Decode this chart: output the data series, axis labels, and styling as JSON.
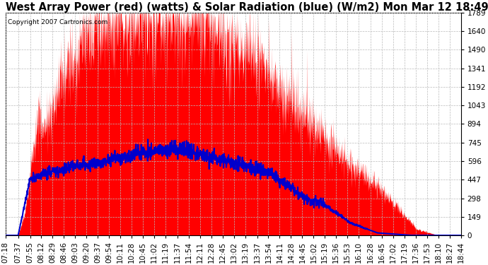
{
  "title": "West Array Power (red) (watts) & Solar Radiation (blue) (W/m2) Mon Mar 12 18:49",
  "copyright": "Copyright 2007 Cartronics.com",
  "ymin": 0.0,
  "ymax": 1788.6,
  "yticks": [
    0.0,
    149.0,
    298.1,
    447.1,
    596.2,
    745.2,
    894.3,
    1043.3,
    1192.4,
    1341.4,
    1490.5,
    1639.5,
    1788.6
  ],
  "background_color": "#ffffff",
  "plot_bg_color": "#ffffff",
  "grid_color": "#bbbbbb",
  "red_color": "#ff0000",
  "blue_color": "#0000cc",
  "title_fontsize": 10.5,
  "tick_label_fontsize": 7.5,
  "copyright_fontsize": 6.5,
  "tick_times": [
    "07:18",
    "07:37",
    "07:55",
    "08:12",
    "08:29",
    "08:46",
    "09:03",
    "09:20",
    "09:37",
    "09:54",
    "10:11",
    "10:28",
    "10:45",
    "11:02",
    "11:19",
    "11:37",
    "11:54",
    "12:11",
    "12:28",
    "12:45",
    "13:02",
    "13:19",
    "13:37",
    "13:54",
    "14:11",
    "14:28",
    "14:45",
    "15:02",
    "15:19",
    "15:36",
    "15:53",
    "16:10",
    "16:28",
    "16:45",
    "17:02",
    "17:19",
    "17:36",
    "17:53",
    "18:10",
    "18:27",
    "18:44"
  ]
}
